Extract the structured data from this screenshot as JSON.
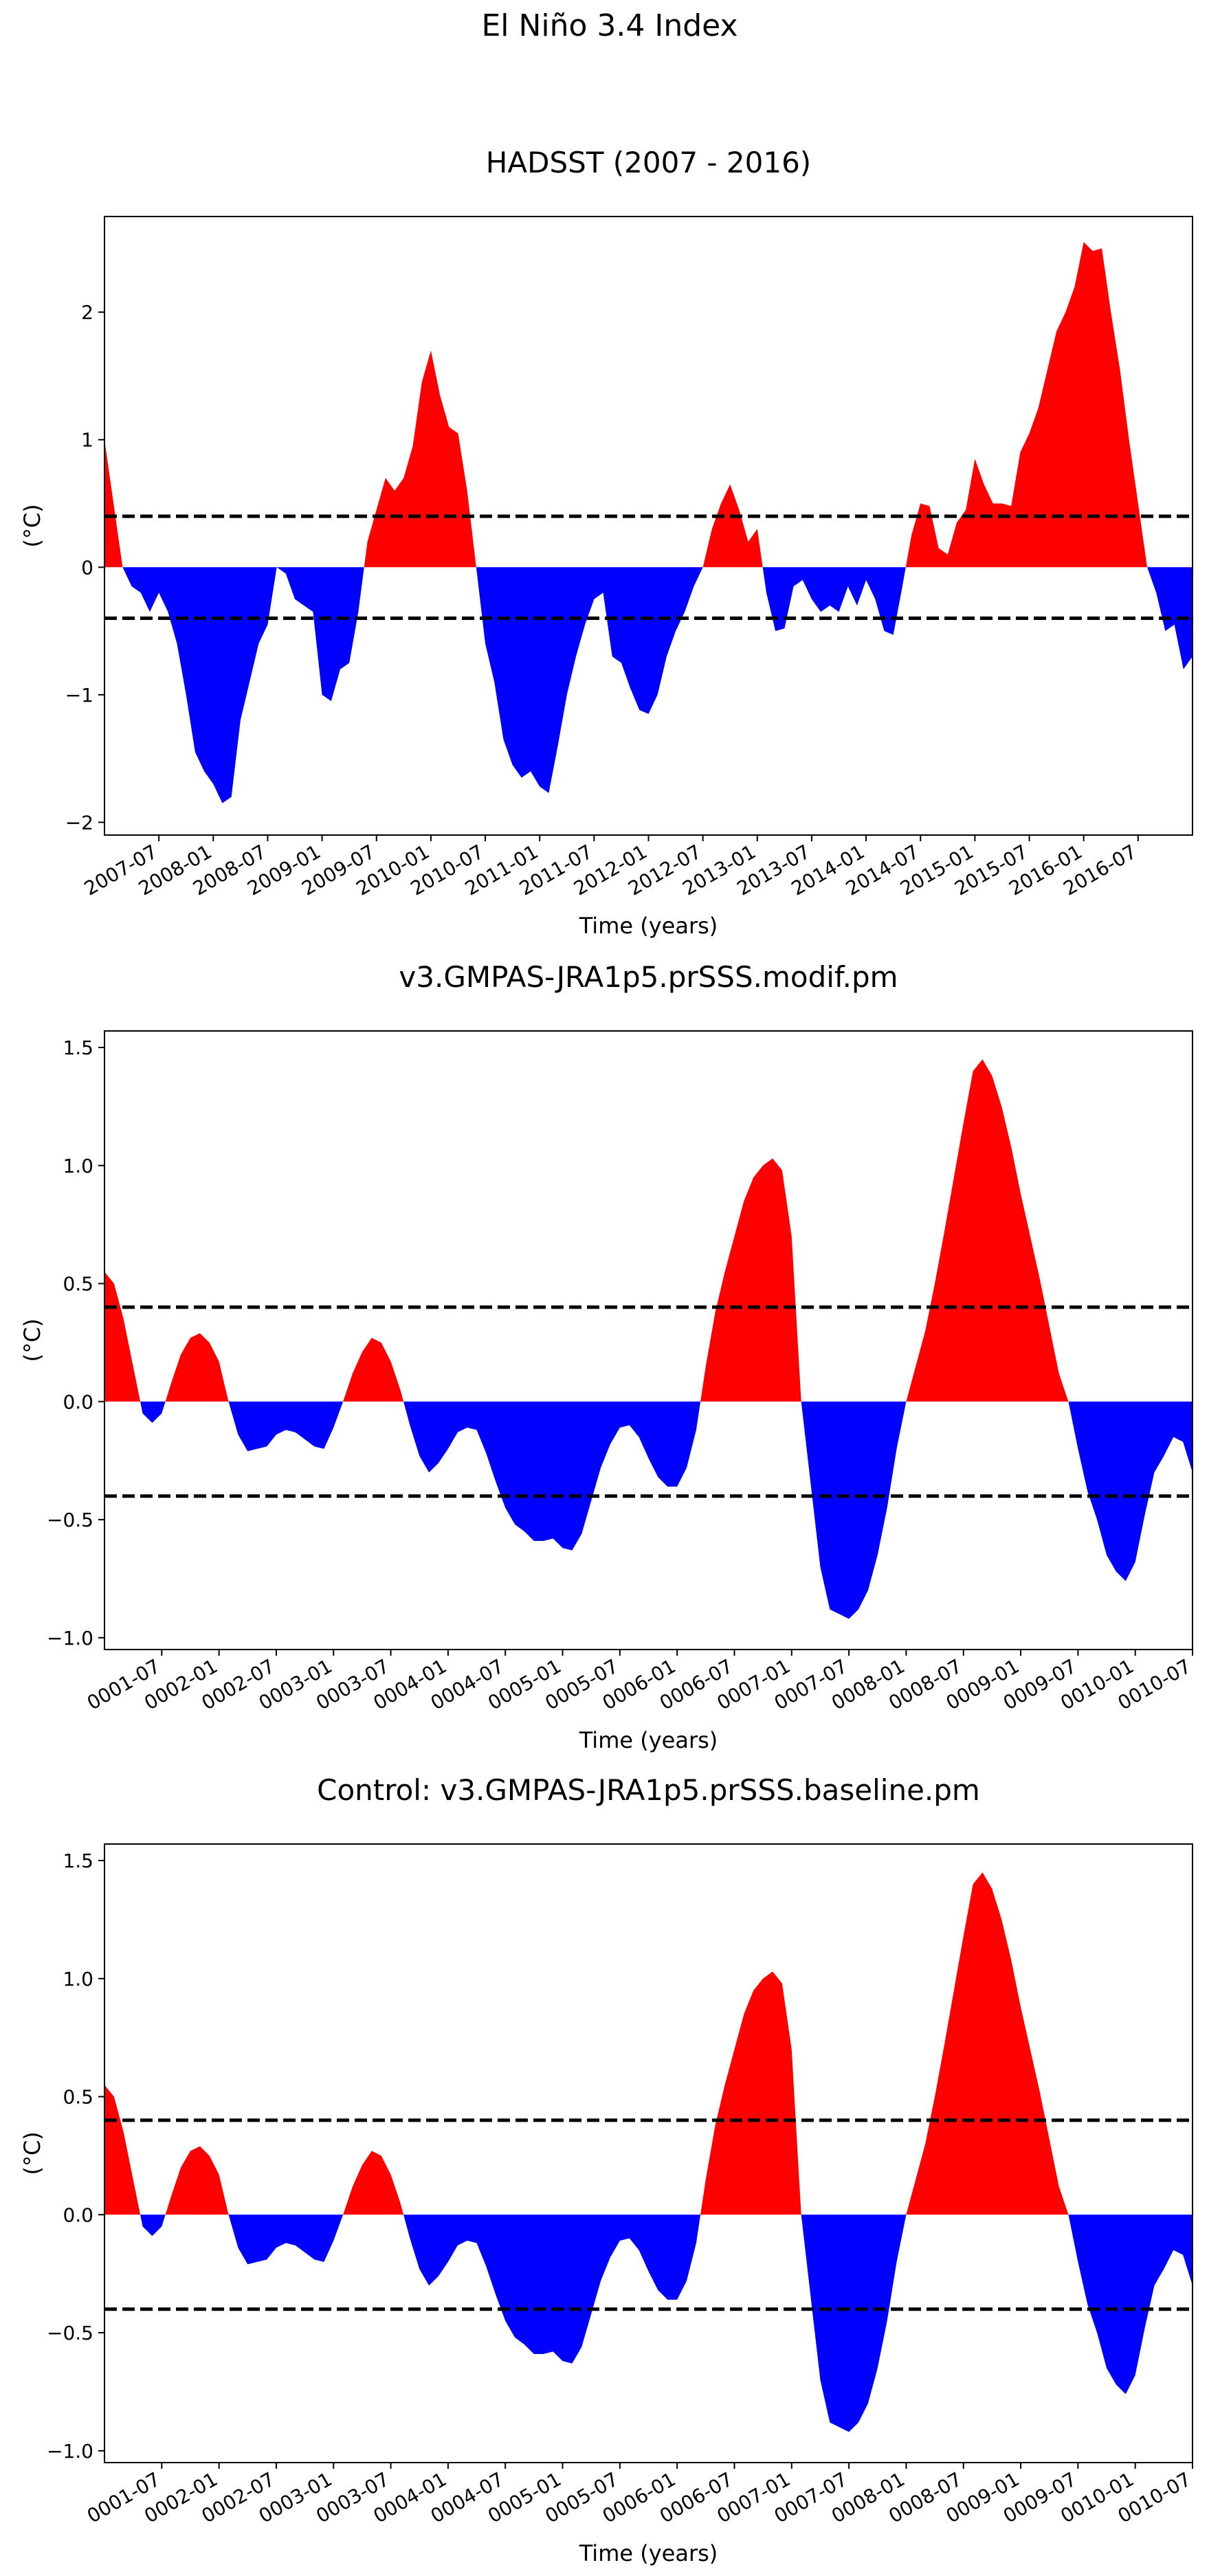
{
  "figure_title": "El Niño 3.4 Index",
  "colors": {
    "positive": "#ff0000",
    "negative": "#0000ff",
    "threshold": "#000000",
    "axis": "#000000"
  },
  "chart_data": [
    {
      "type": "area",
      "title": "HADSST (2007 - 2016)",
      "xlabel": "Time (years)",
      "ylabel": "(°C)",
      "xlim": [
        0,
        120
      ],
      "ylim": [
        -2.1,
        2.75
      ],
      "yticks": [
        -2,
        -1,
        0,
        1,
        2
      ],
      "ytick_labels": [
        "−2",
        "−1",
        "0",
        "1",
        "2"
      ],
      "xticks": [
        6,
        12,
        18,
        24,
        30,
        36,
        42,
        48,
        54,
        60,
        66,
        72,
        78,
        84,
        90,
        96,
        102,
        108,
        114
      ],
      "xtick_labels": [
        "2007-07",
        "2008-01",
        "2008-07",
        "2009-01",
        "2009-07",
        "2010-01",
        "2010-07",
        "2011-01",
        "2011-07",
        "2012-01",
        "2012-07",
        "2013-01",
        "2013-07",
        "2014-01",
        "2014-07",
        "2015-01",
        "2015-07",
        "2016-01",
        "2016-07"
      ],
      "thresholds": [
        0.4,
        -0.4
      ],
      "values": [
        1.0,
        0.5,
        0.0,
        -0.15,
        -0.2,
        -0.35,
        -0.2,
        -0.35,
        -0.6,
        -1.0,
        -1.45,
        -1.6,
        -1.7,
        -1.85,
        -1.8,
        -1.2,
        -0.9,
        -0.6,
        -0.45,
        0.0,
        -0.05,
        -0.25,
        -0.3,
        -0.35,
        -1.0,
        -1.05,
        -0.8,
        -0.75,
        -0.35,
        0.2,
        0.45,
        0.7,
        0.6,
        0.7,
        0.95,
        1.45,
        1.7,
        1.35,
        1.1,
        1.05,
        0.6,
        0.0,
        -0.6,
        -0.9,
        -1.35,
        -1.55,
        -1.65,
        -1.6,
        -1.72,
        -1.77,
        -1.4,
        -1.0,
        -0.7,
        -0.45,
        -0.25,
        -0.2,
        -0.7,
        -0.75,
        -0.95,
        -1.12,
        -1.15,
        -1.0,
        -0.7,
        -0.5,
        -0.35,
        -0.15,
        0.0,
        0.3,
        0.5,
        0.65,
        0.45,
        0.2,
        0.3,
        -0.2,
        -0.5,
        -0.48,
        -0.15,
        -0.1,
        -0.25,
        -0.35,
        -0.3,
        -0.35,
        -0.15,
        -0.3,
        -0.1,
        -0.25,
        -0.5,
        -0.53,
        -0.15,
        0.25,
        0.5,
        0.48,
        0.15,
        0.1,
        0.35,
        0.45,
        0.85,
        0.65,
        0.5,
        0.5,
        0.48,
        0.9,
        1.05,
        1.25,
        1.55,
        1.85,
        2.0,
        2.2,
        2.55,
        2.48,
        2.5,
        2.0,
        1.55,
        1.0,
        0.5,
        0.0,
        -0.2,
        -0.5,
        -0.45,
        -0.8,
        -0.7
      ]
    },
    {
      "type": "area",
      "title": "v3.GMPAS-JRA1p5.prSSS.modif.pm",
      "xlabel": "Time (years)",
      "ylabel": "(°C)",
      "xlim": [
        0,
        114
      ],
      "ylim": [
        -1.05,
        1.57
      ],
      "yticks": [
        -1.0,
        -0.5,
        0.0,
        0.5,
        1.0,
        1.5
      ],
      "ytick_labels": [
        "−1.0",
        "−0.5",
        "0.0",
        "0.5",
        "1.0",
        "1.5"
      ],
      "xticks": [
        6,
        12,
        18,
        24,
        30,
        36,
        42,
        48,
        54,
        60,
        66,
        72,
        78,
        84,
        90,
        96,
        102,
        108,
        114
      ],
      "xtick_labels": [
        "0001-07",
        "0002-01",
        "0002-07",
        "0003-01",
        "0003-07",
        "0004-01",
        "0004-07",
        "0005-01",
        "0005-07",
        "0006-01",
        "0006-07",
        "0007-01",
        "0007-07",
        "0008-01",
        "0008-07",
        "0009-01",
        "0009-07",
        "0010-01",
        "0010-07"
      ],
      "thresholds": [
        0.4,
        -0.4
      ],
      "values": [
        0.55,
        0.5,
        0.35,
        0.15,
        -0.05,
        -0.09,
        -0.05,
        0.08,
        0.2,
        0.27,
        0.29,
        0.25,
        0.17,
        0.0,
        -0.14,
        -0.21,
        -0.2,
        -0.19,
        -0.14,
        -0.12,
        -0.13,
        -0.16,
        -0.19,
        -0.2,
        -0.11,
        0.0,
        0.12,
        0.21,
        0.27,
        0.25,
        0.17,
        0.05,
        -0.1,
        -0.23,
        -0.3,
        -0.26,
        -0.2,
        -0.13,
        -0.11,
        -0.12,
        -0.22,
        -0.34,
        -0.45,
        -0.52,
        -0.55,
        -0.59,
        -0.59,
        -0.58,
        -0.62,
        -0.63,
        -0.56,
        -0.42,
        -0.28,
        -0.18,
        -0.11,
        -0.1,
        -0.15,
        -0.24,
        -0.32,
        -0.36,
        -0.36,
        -0.28,
        -0.12,
        0.15,
        0.38,
        0.55,
        0.7,
        0.85,
        0.95,
        1.0,
        1.03,
        0.98,
        0.7,
        0.0,
        -0.35,
        -0.7,
        -0.88,
        -0.9,
        -0.92,
        -0.88,
        -0.8,
        -0.65,
        -0.45,
        -0.2,
        0.0,
        0.15,
        0.3,
        0.5,
        0.72,
        0.95,
        1.18,
        1.4,
        1.45,
        1.38,
        1.25,
        1.08,
        0.88,
        0.7,
        0.52,
        0.32,
        0.12,
        0.0,
        -0.2,
        -0.38,
        -0.5,
        -0.65,
        -0.72,
        -0.76,
        -0.68,
        -0.48,
        -0.3,
        -0.23,
        -0.15,
        -0.17,
        -0.3
      ]
    },
    {
      "type": "area",
      "title": "Control: v3.GMPAS-JRA1p5.prSSS.baseline.pm",
      "xlabel": "Time (years)",
      "ylabel": "(°C)",
      "xlim": [
        0,
        114
      ],
      "ylim": [
        -1.05,
        1.57
      ],
      "yticks": [
        -1.0,
        -0.5,
        0.0,
        0.5,
        1.0,
        1.5
      ],
      "ytick_labels": [
        "−1.0",
        "−0.5",
        "0.0",
        "0.5",
        "1.0",
        "1.5"
      ],
      "xticks": [
        6,
        12,
        18,
        24,
        30,
        36,
        42,
        48,
        54,
        60,
        66,
        72,
        78,
        84,
        90,
        96,
        102,
        108,
        114
      ],
      "xtick_labels": [
        "0001-07",
        "0002-01",
        "0002-07",
        "0003-01",
        "0003-07",
        "0004-01",
        "0004-07",
        "0005-01",
        "0005-07",
        "0006-01",
        "0006-07",
        "0007-01",
        "0007-07",
        "0008-01",
        "0008-07",
        "0009-01",
        "0009-07",
        "0010-01",
        "0010-07"
      ],
      "thresholds": [
        0.4,
        -0.4
      ],
      "values": [
        0.55,
        0.5,
        0.35,
        0.15,
        -0.05,
        -0.09,
        -0.05,
        0.08,
        0.2,
        0.27,
        0.29,
        0.25,
        0.17,
        0.0,
        -0.14,
        -0.21,
        -0.2,
        -0.19,
        -0.14,
        -0.12,
        -0.13,
        -0.16,
        -0.19,
        -0.2,
        -0.11,
        0.0,
        0.12,
        0.21,
        0.27,
        0.25,
        0.17,
        0.05,
        -0.1,
        -0.23,
        -0.3,
        -0.26,
        -0.2,
        -0.13,
        -0.11,
        -0.12,
        -0.22,
        -0.34,
        -0.45,
        -0.52,
        -0.55,
        -0.59,
        -0.59,
        -0.58,
        -0.62,
        -0.63,
        -0.56,
        -0.42,
        -0.28,
        -0.18,
        -0.11,
        -0.1,
        -0.15,
        -0.24,
        -0.32,
        -0.36,
        -0.36,
        -0.28,
        -0.12,
        0.15,
        0.38,
        0.55,
        0.7,
        0.85,
        0.95,
        1.0,
        1.03,
        0.98,
        0.7,
        0.0,
        -0.35,
        -0.7,
        -0.88,
        -0.9,
        -0.92,
        -0.88,
        -0.8,
        -0.65,
        -0.45,
        -0.2,
        0.0,
        0.15,
        0.3,
        0.5,
        0.72,
        0.95,
        1.18,
        1.4,
        1.45,
        1.38,
        1.25,
        1.08,
        0.88,
        0.7,
        0.52,
        0.32,
        0.12,
        0.0,
        -0.2,
        -0.38,
        -0.5,
        -0.65,
        -0.72,
        -0.76,
        -0.68,
        -0.48,
        -0.3,
        -0.23,
        -0.15,
        -0.17,
        -0.3
      ]
    }
  ]
}
